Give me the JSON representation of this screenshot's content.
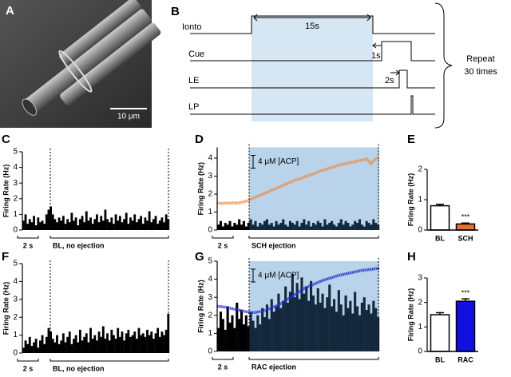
{
  "image_panel": {
    "panel": "A",
    "scale_bar": "10 μm"
  },
  "timing_panel": {
    "panel": "B",
    "rows": [
      "Ionto",
      "Cue",
      "LE",
      "LP"
    ],
    "durations": [
      "15s",
      "1s",
      "2s"
    ],
    "repeat": [
      "Repeat",
      "30 times"
    ]
  },
  "chart_data": [
    {
      "type": "bar",
      "panel": "C",
      "y_label": "Firing Rate (Hz)",
      "ylim": [
        0,
        5
      ],
      "yticks": [
        0,
        1,
        2,
        3,
        4,
        5
      ],
      "annotations": [
        "2 s",
        "BL, no ejection"
      ],
      "series": [
        {
          "color": "#000000",
          "values": [
            0.6,
            1.0,
            0.4,
            0.7,
            0.5,
            0.9,
            0.3,
            0.8,
            0.5,
            0.6,
            0.4,
            1.0,
            1.3,
            1.5,
            1.0,
            0.7,
            0.5,
            0.8,
            0.6,
            0.9,
            0.4,
            0.7,
            0.5,
            1.1,
            0.6,
            0.8,
            0.3,
            0.7,
            0.9,
            0.5,
            1.2,
            0.6,
            0.8,
            0.4,
            0.7,
            1.0,
            0.5,
            0.9,
            0.6,
            1.3,
            0.7,
            0.5,
            0.8,
            0.4,
            1.0,
            0.6,
            0.9,
            0.5,
            0.7,
            1.1,
            0.4,
            0.8,
            0.6,
            1.0,
            0.5,
            0.7,
            0.9,
            0.4,
            0.8,
            0.6,
            1.2,
            0.5,
            0.7,
            0.9,
            0.4,
            0.6,
            0.8,
            0.5,
            1.0,
            0.7
          ]
        }
      ]
    },
    {
      "type": "bar",
      "panel": "D",
      "y_label": "Firing Rate (Hz)",
      "ylim": [
        0,
        4.6
      ],
      "yticks": [
        0,
        1,
        2,
        3,
        4
      ],
      "annotations": [
        "2 s",
        "SCH ejection",
        "4 μM [ACP]"
      ],
      "shade_color": "#b8d3ea",
      "series": [
        {
          "color": "#000000",
          "ejection_color": "#13283b",
          "values": [
            0.3,
            0.5,
            0.2,
            0.4,
            0.3,
            0.5,
            0.2,
            0.4,
            0.3,
            0.6,
            0.3,
            0.5,
            0.2,
            0.4,
            0.6,
            0.3,
            0.5,
            0.2,
            0.4,
            0.3,
            0.5,
            0.6,
            0.3,
            0.4,
            0.2,
            0.5,
            0.3,
            0.4,
            0.6,
            0.3,
            0.2,
            0.5,
            0.4,
            0.3,
            0.5,
            0.2,
            0.4,
            0.6,
            0.3,
            0.5,
            0.2,
            0.4,
            0.3,
            0.5,
            0.4,
            0.2,
            0.6,
            0.3,
            0.4,
            0.5,
            0.3,
            0.2,
            0.4,
            0.6,
            0.3,
            0.5,
            0.4,
            0.2,
            0.3,
            0.5,
            0.4,
            0.6,
            0.3,
            0.2,
            0.5,
            0.4,
            0.3,
            0.6,
            0.4,
            0.3
          ]
        },
        {
          "type": "line",
          "color": "#f08a3c",
          "values": [
            1.5,
            1.48,
            1.5,
            1.5,
            1.52,
            1.5,
            1.55,
            1.6,
            1.7,
            1.8,
            1.9,
            2.0,
            2.1,
            2.2,
            2.3,
            2.4,
            2.5,
            2.6,
            2.7,
            2.8,
            2.85,
            2.95,
            3.05,
            3.1,
            3.2,
            3.3,
            3.35,
            3.45,
            3.5,
            3.6,
            3.65,
            3.7,
            3.75,
            3.8,
            3.85,
            3.9,
            3.95,
            3.7,
            3.95,
            4.0
          ]
        }
      ]
    },
    {
      "type": "bar",
      "panel": "E",
      "y_label": "Firing Rate (Hz)",
      "ylim": [
        0,
        2
      ],
      "yticks": [
        0,
        1,
        2
      ],
      "categories": [
        "BL",
        "SCH"
      ],
      "annotations": [
        "***"
      ],
      "series": [
        {
          "values": [
            0.8,
            0.2
          ],
          "errors": [
            0.05,
            0.03
          ],
          "colors": [
            "#ffffff",
            "#e8702a"
          ]
        }
      ]
    },
    {
      "type": "bar",
      "panel": "F",
      "y_label": "Firing Rate (Hz)",
      "ylim": [
        0,
        5
      ],
      "yticks": [
        0,
        1,
        2,
        3,
        4,
        5
      ],
      "annotations": [
        "2 s",
        "BL, no ejection"
      ],
      "series": [
        {
          "color": "#000000",
          "values": [
            0.3,
            0.7,
            0.5,
            0.9,
            0.4,
            0.6,
            0.8,
            0.3,
            0.7,
            1.0,
            0.5,
            0.9,
            1.4,
            1.2,
            0.8,
            0.6,
            1.0,
            0.5,
            0.7,
            1.1,
            0.6,
            0.9,
            1.2,
            0.5,
            0.8,
            1.0,
            0.6,
            1.3,
            0.7,
            0.9,
            1.1,
            0.6,
            1.4,
            0.8,
            1.0,
            0.7,
            1.2,
            0.9,
            1.5,
            0.8,
            1.1,
            0.7,
            1.3,
            1.0,
            0.8,
            1.4,
            0.9,
            1.2,
            0.7,
            1.1,
            1.3,
            0.9,
            1.0,
            1.2,
            0.8,
            1.4,
            1.0,
            1.1,
            0.9,
            1.3,
            1.0,
            1.2,
            0.8,
            1.1,
            1.4,
            0.9,
            1.2,
            1.0,
            1.3,
            2.2
          ]
        }
      ]
    },
    {
      "type": "bar",
      "panel": "G",
      "y_label": "Firing Rate (Hz)",
      "ylim": [
        0,
        5
      ],
      "yticks": [
        0,
        1,
        2,
        3,
        4,
        5
      ],
      "annotations": [
        "2 s",
        "RAC ejection",
        "4 μM [ACP]"
      ],
      "shade_color": "#b8d3ea",
      "series": [
        {
          "color": "#000000",
          "ejection_color": "#13283b",
          "values": [
            1.3,
            2.2,
            1.8,
            1.2,
            2.5,
            1.6,
            2.0,
            1.3,
            2.7,
            1.8,
            2.3,
            1.5,
            2.0,
            1.4,
            2.2,
            1.7,
            1.3,
            2.0,
            1.5,
            2.4,
            1.9,
            2.6,
            1.8,
            2.9,
            2.2,
            2.5,
            3.2,
            2.4,
            2.8,
            3.6,
            2.7,
            3.3,
            4.3,
            3.0,
            3.8,
            2.9,
            4.1,
            3.2,
            3.6,
            2.8,
            3.9,
            3.1,
            2.6,
            3.5,
            2.7,
            3.2,
            2.4,
            3.0,
            3.7,
            2.5,
            2.9,
            2.2,
            3.4,
            2.6,
            2.0,
            3.1,
            2.4,
            2.8,
            2.1,
            3.3,
            2.5,
            2.0,
            2.7,
            3.0,
            2.3,
            2.6,
            2.1,
            2.8,
            2.4,
            1.9
          ]
        },
        {
          "type": "line",
          "color": "#2030d0",
          "values": [
            2.5,
            2.48,
            2.45,
            2.4,
            2.35,
            2.3,
            2.25,
            2.2,
            2.15,
            2.15,
            2.2,
            2.25,
            2.3,
            2.4,
            2.5,
            2.6,
            2.75,
            2.9,
            3.05,
            3.2,
            3.35,
            3.5,
            3.6,
            3.7,
            3.8,
            3.9,
            3.98,
            4.05,
            4.12,
            4.2,
            4.25,
            4.3,
            4.35,
            4.4,
            4.45,
            4.5,
            4.52,
            4.55,
            4.58,
            4.6
          ]
        }
      ]
    },
    {
      "type": "bar",
      "panel": "H",
      "y_label": "Firing Rate (Hz)",
      "ylim": [
        0,
        3
      ],
      "yticks": [
        0,
        1,
        2,
        3
      ],
      "categories": [
        "BL",
        "RAC"
      ],
      "annotations": [
        "***"
      ],
      "series": [
        {
          "values": [
            1.5,
            2.05
          ],
          "errors": [
            0.08,
            0.1
          ],
          "colors": [
            "#ffffff",
            "#1010e0"
          ]
        }
      ]
    }
  ]
}
